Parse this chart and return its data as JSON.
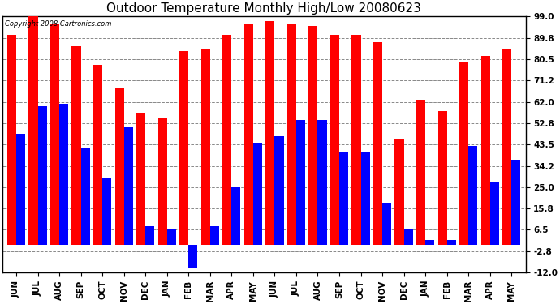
{
  "title": "Outdoor Temperature Monthly High/Low 20080623",
  "copyright": "Copyright 2008 Cartronics.com",
  "months": [
    "JUN",
    "JUL",
    "AUG",
    "SEP",
    "OCT",
    "NOV",
    "DEC",
    "JAN",
    "FEB",
    "MAR",
    "APR",
    "MAY",
    "JUN",
    "JUL",
    "AUG",
    "SEP",
    "OCT",
    "NOV",
    "DEC",
    "JAN",
    "FEB",
    "MAR",
    "APR",
    "MAY"
  ],
  "highs": [
    91,
    99,
    96,
    86,
    78,
    68,
    57,
    55,
    84,
    85,
    91,
    96,
    97,
    96,
    95,
    91,
    91,
    88,
    46,
    63,
    58,
    79,
    82,
    85
  ],
  "lows": [
    48,
    60,
    61,
    42,
    29,
    51,
    8,
    7,
    -10,
    8,
    25,
    44,
    47,
    54,
    54,
    40,
    40,
    18,
    7,
    2,
    2,
    43,
    27,
    37
  ],
  "high_color": "#ff0000",
  "low_color": "#0000ff",
  "bg_color": "#ffffff",
  "plot_bg": "#ffffff",
  "grid_color": "#888888",
  "yticks": [
    99.0,
    89.8,
    80.5,
    71.2,
    62.0,
    52.8,
    43.5,
    34.2,
    25.0,
    15.8,
    6.5,
    -2.8,
    -12.0
  ],
  "ymin": -12.0,
  "ymax": 99.0,
  "title_fontsize": 11,
  "tick_fontsize": 7.5,
  "bar_width": 0.42,
  "figwidth": 6.9,
  "figheight": 3.75,
  "dpi": 100
}
